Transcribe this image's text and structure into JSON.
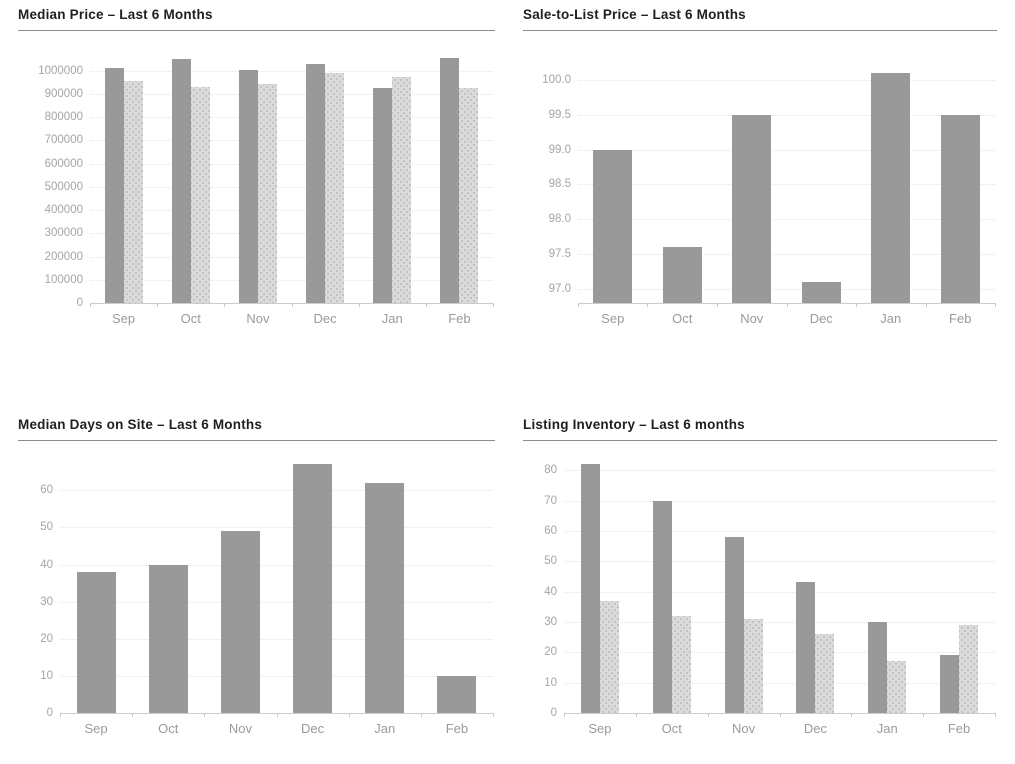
{
  "page": {
    "background": "#ffffff"
  },
  "colors": {
    "title": "#1f1f1f",
    "title_rule": "#8c8c8c",
    "bar_primary": "#999999",
    "bar_secondary": "#dbdbdb",
    "bar_secondary_dots": "#b9b9b9",
    "gridline": "#e3e3e3",
    "axis_line": "#cccccc",
    "y_tick_label": "#a5a5a5",
    "x_tick_label": "#9a9a9a"
  },
  "chart_data": [
    {
      "id": "median-price",
      "type": "bar",
      "title": "Median Price – Last 6 Months",
      "xlabel": "",
      "ylabel": "",
      "grid": true,
      "legend_position": "none",
      "categories": [
        "Sep",
        "Oct",
        "Nov",
        "Dec",
        "Jan",
        "Feb"
      ],
      "series": [
        {
          "name": "series-1",
          "style": "solid",
          "values": [
            1010000,
            1050000,
            1003000,
            1027000,
            926000,
            1056000
          ]
        },
        {
          "name": "series-2",
          "style": "dotted",
          "values": [
            955000,
            930000,
            944000,
            990000,
            973000,
            923000
          ]
        }
      ],
      "yticks": {
        "values": [
          0,
          100000,
          200000,
          300000,
          400000,
          500000,
          600000,
          700000,
          800000,
          900000,
          1000000
        ],
        "labels": [
          "0",
          "100000",
          "200000",
          "300000",
          "400000",
          "500000",
          "600000",
          "700000",
          "800000",
          "900000",
          "1000000"
        ]
      },
      "ylim": [
        0,
        1110000
      ]
    },
    {
      "id": "sale-to-list",
      "type": "bar",
      "title": "Sale-to-List Price – Last 6 Months",
      "xlabel": "",
      "ylabel": "",
      "grid": true,
      "legend_position": "none",
      "categories": [
        "Sep",
        "Oct",
        "Nov",
        "Dec",
        "Jan",
        "Feb"
      ],
      "series": [
        {
          "name": "series-1",
          "style": "solid",
          "values": [
            99.0,
            97.6,
            99.5,
            97.1,
            100.1,
            99.5
          ]
        }
      ],
      "yticks": {
        "values": [
          97.0,
          97.5,
          98.0,
          98.5,
          99.0,
          99.5,
          100.0
        ],
        "labels": [
          "97.0",
          "97.5",
          "98.0",
          "98.5",
          "99.0",
          "99.5",
          "100.0"
        ]
      },
      "ylim": [
        96.8,
        100.5
      ]
    },
    {
      "id": "median-days-on-site",
      "type": "bar",
      "title": "Median Days on Site – Last 6 Months",
      "xlabel": "",
      "ylabel": "",
      "grid": true,
      "legend_position": "none",
      "categories": [
        "Sep",
        "Oct",
        "Nov",
        "Dec",
        "Jan",
        "Feb"
      ],
      "series": [
        {
          "name": "series-1",
          "style": "solid",
          "values": [
            38,
            40,
            49,
            67,
            62,
            10
          ]
        }
      ],
      "yticks": {
        "values": [
          0,
          10,
          20,
          30,
          40,
          50,
          60
        ],
        "labels": [
          "0",
          "10",
          "20",
          "30",
          "40",
          "50",
          "60"
        ]
      },
      "ylim": [
        0,
        69.5
      ]
    },
    {
      "id": "listing-inventory",
      "type": "bar",
      "title": "Listing Inventory – Last 6 months",
      "xlabel": "",
      "ylabel": "",
      "grid": true,
      "legend_position": "none",
      "categories": [
        "Sep",
        "Oct",
        "Nov",
        "Dec",
        "Jan",
        "Feb"
      ],
      "series": [
        {
          "name": "series-1",
          "style": "solid",
          "values": [
            82,
            70,
            58,
            43,
            30,
            19
          ]
        },
        {
          "name": "series-2",
          "style": "dotted",
          "values": [
            37,
            32,
            31,
            26,
            17,
            29
          ]
        }
      ],
      "yticks": {
        "values": [
          0,
          10,
          20,
          30,
          40,
          50,
          60,
          70,
          80
        ],
        "labels": [
          "0",
          "10",
          "20",
          "30",
          "40",
          "50",
          "60",
          "70",
          "80"
        ]
      },
      "ylim": [
        0,
        85
      ]
    }
  ]
}
